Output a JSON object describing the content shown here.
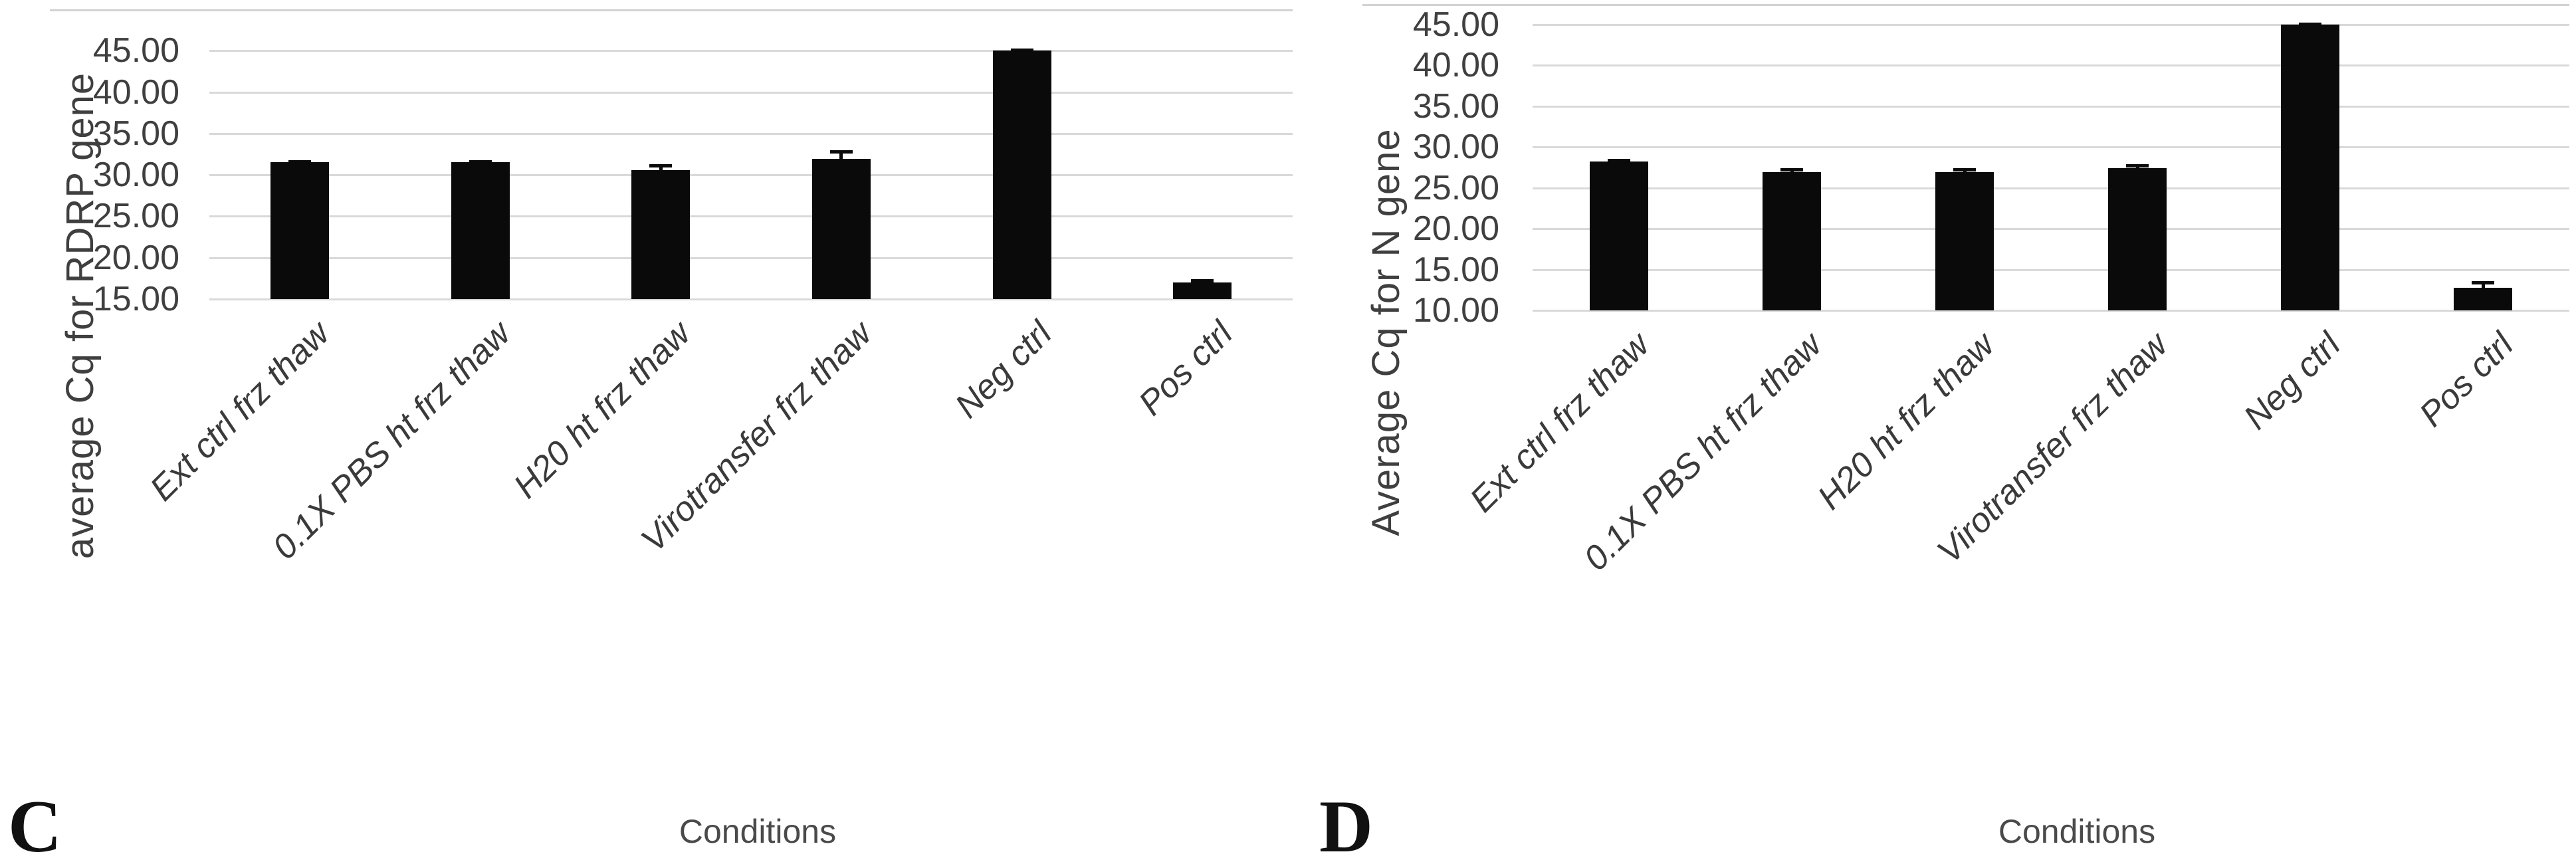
{
  "figure": {
    "description": "Two-panel bar chart figure of qPCR Cq values under different storage conditions",
    "background_color": "#ffffff",
    "bar_color": "#0a0a0a",
    "gridline_color": "#d9d9d9",
    "text_color": "#3f3f3f"
  },
  "chart_data": [
    {
      "type": "bar",
      "panel_label": "C",
      "title": "",
      "ylabel": "average Cq for RDRP gene",
      "xlabel": "Conditions",
      "categories": [
        "Ext ctrl frz thaw",
        "0.1X PBS ht frz thaw",
        "H20 ht frz thaw",
        "Virotransfer  frz thaw",
        "Neg ctrl",
        "Pos ctrl"
      ],
      "values": [
        31.5,
        31.5,
        30.6,
        31.9,
        45.0,
        17.0
      ],
      "errors": [
        0.15,
        0.15,
        0.5,
        0.9,
        0.08,
        0.25
      ],
      "y_tick_labels": [
        "45.00",
        "40.00",
        "35.00",
        "30.00",
        "25.00",
        "20.00",
        "15.00"
      ],
      "ylim": [
        15,
        50
      ],
      "grid": true,
      "legend": false
    },
    {
      "type": "bar",
      "panel_label": "D",
      "title": "",
      "ylabel": "Average Cq for N gene",
      "xlabel": "Conditions",
      "categories": [
        "Ext ctrl frz thaw",
        "0.1X PBS ht frz thaw",
        "H20 ht frz thaw",
        "Virotransfer  frz thaw",
        "Neg ctrl",
        "Pos ctrl"
      ],
      "values": [
        28.2,
        26.9,
        26.9,
        27.4,
        45.0,
        12.8
      ],
      "errors": [
        0.2,
        0.35,
        0.35,
        0.35,
        0.08,
        0.6
      ],
      "y_tick_labels": [
        "45.00",
        "40.00",
        "35.00",
        "30.00",
        "25.00",
        "20.00",
        "15.00",
        "10.00"
      ],
      "ylim": [
        10,
        47.5
      ],
      "grid": true,
      "legend": false
    }
  ]
}
